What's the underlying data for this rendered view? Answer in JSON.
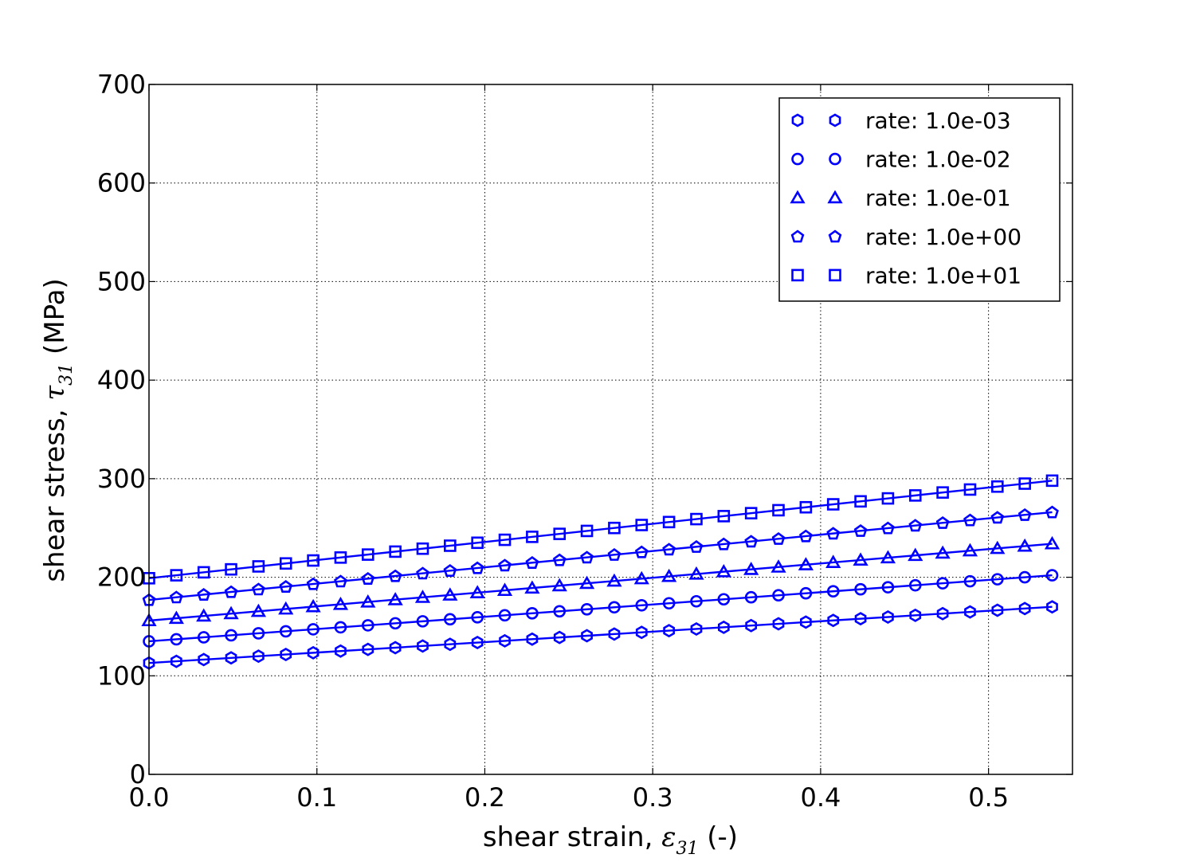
{
  "chart_data": {
    "type": "line",
    "xlabel": "shear strain, ε31 (-)",
    "ylabel": "shear stress, τ31 (MPa)",
    "xlabel_parts": {
      "pre": "shear strain, ",
      "sym": "ε",
      "sub": "31",
      "post": " (-)"
    },
    "ylabel_parts": {
      "pre": "shear stress, ",
      "sym": "τ",
      "sub": "31",
      "post": " (MPa)"
    },
    "xlim": [
      0.0,
      0.55
    ],
    "ylim": [
      0,
      700
    ],
    "xticks": [
      0.0,
      0.1,
      0.2,
      0.3,
      0.4,
      0.5
    ],
    "xtick_labels": [
      "0.0",
      "0.1",
      "0.2",
      "0.3",
      "0.4",
      "0.5"
    ],
    "yticks": [
      0,
      100,
      200,
      300,
      400,
      500,
      600,
      700
    ],
    "ytick_labels": [
      "0",
      "100",
      "200",
      "300",
      "400",
      "500",
      "600",
      "700"
    ],
    "grid": true,
    "legend_position": "top-right",
    "color": "#0000ff",
    "x_start": 0.0,
    "x_step": 0.0163,
    "n_points": 34,
    "series": [
      {
        "name": "rate: 1.0e-03",
        "marker": "hexagon",
        "y_start": 113,
        "y_end": 170
      },
      {
        "name": "rate: 1.0e-02",
        "marker": "circle",
        "y_start": 135,
        "y_end": 202
      },
      {
        "name": "rate: 1.0e-01",
        "marker": "triangle",
        "y_start": 156,
        "y_end": 234
      },
      {
        "name": "rate: 1.0e+00",
        "marker": "pentagon",
        "y_start": 177,
        "y_end": 266
      },
      {
        "name": "rate: 1.0e+01",
        "marker": "square",
        "y_start": 199,
        "y_end": 298
      }
    ]
  }
}
